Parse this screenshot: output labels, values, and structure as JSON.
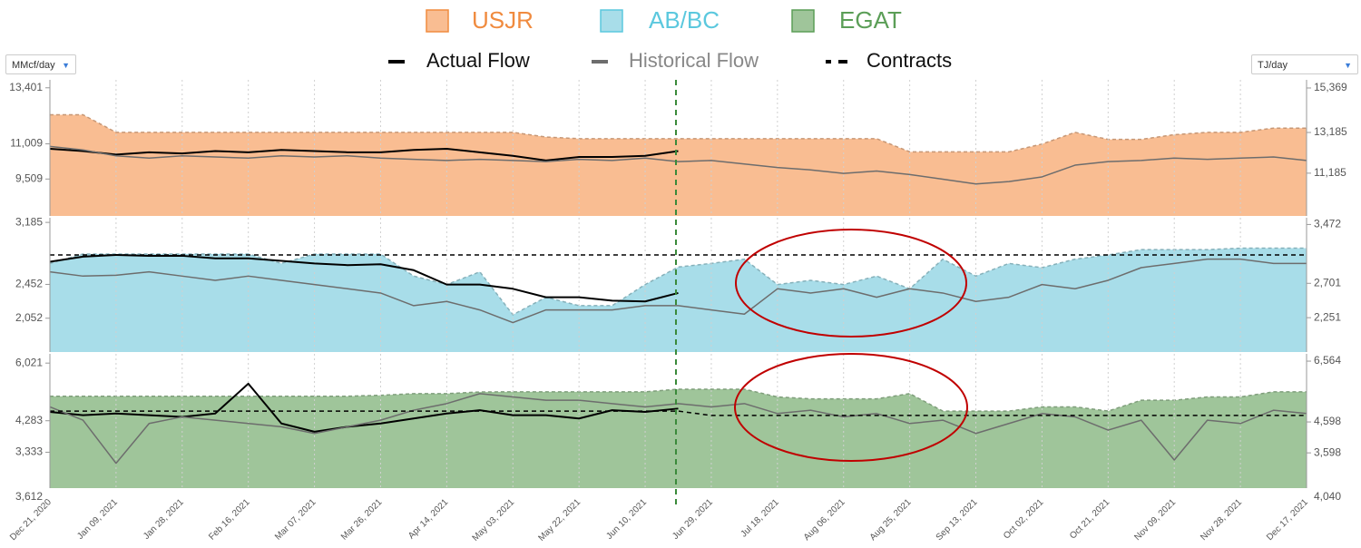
{
  "controls": {
    "left_unit": "MMcf/day",
    "right_unit": "TJ/day"
  },
  "chart_data": [
    {
      "type": "area",
      "ylim": [
        7934,
        13740
      ],
      "y2lim": [
        9085,
        15769
      ],
      "yticks": [
        {
          "value": 13401,
          "label": "13,401"
        },
        {
          "value": 11009,
          "label": "11,009"
        },
        {
          "value": 9509,
          "label": "9,509"
        }
      ],
      "y2ticks": [
        {
          "value": 15369,
          "label": "15,369"
        },
        {
          "value": 13185,
          "label": "13,185"
        },
        {
          "value": 11185,
          "label": "11,185"
        }
      ],
      "series": [
        {
          "name": "USJR",
          "style": "area",
          "color": "#f9bd92",
          "values": [
            12250,
            12250,
            11500,
            11500,
            11500,
            11500,
            11500,
            11500,
            11500,
            11500,
            11500,
            11500,
            11500,
            11500,
            11500,
            11300,
            11230,
            11230,
            11230,
            11230,
            11230,
            11230,
            11230,
            11230,
            11230,
            11230,
            10670,
            10670,
            10670,
            10670,
            11000,
            11500,
            11200,
            11200,
            11400,
            11500,
            11500,
            11680,
            11680
          ]
        },
        {
          "name": "Actual Flow",
          "style": "line",
          "color": "#000000",
          "values": [
            10800,
            10700,
            10550,
            10650,
            10600,
            10700,
            10650,
            10750,
            10700,
            10650,
            10650,
            10750,
            10800,
            10650,
            10500,
            10300,
            10450,
            10450,
            10500,
            10700,
            null,
            null,
            null,
            null,
            null,
            null,
            null,
            null,
            null,
            null,
            null,
            null,
            null,
            null,
            null,
            null,
            null,
            null,
            null
          ]
        },
        {
          "name": "Historical Flow",
          "style": "line",
          "color": "#6d6d6d",
          "values": [
            10900,
            10750,
            10500,
            10400,
            10500,
            10450,
            10400,
            10500,
            10450,
            10500,
            10400,
            10350,
            10300,
            10350,
            10300,
            10250,
            10350,
            10300,
            10400,
            10250,
            10300,
            10150,
            10000,
            9900,
            9750,
            9850,
            9700,
            9500,
            9300,
            9400,
            9600,
            10100,
            10250,
            10300,
            10400,
            10350,
            10400,
            10450,
            10300
          ]
        }
      ]
    },
    {
      "type": "area",
      "ylim": [
        1652,
        3240
      ],
      "y2lim": [
        1801,
        3560
      ],
      "yticks": [
        {
          "value": 3185,
          "label": "3,185"
        },
        {
          "value": 2452,
          "label": "2,452"
        },
        {
          "value": 2052,
          "label": "2,052"
        }
      ],
      "y2ticks": [
        {
          "value": 3472,
          "label": "3,472"
        },
        {
          "value": 2701,
          "label": "2,701"
        },
        {
          "value": 2251,
          "label": "2,251"
        }
      ],
      "series": [
        {
          "name": "AB/BC",
          "style": "area",
          "color": "#a8dde9",
          "values": [
            2700,
            2811,
            2811,
            2811,
            2811,
            2811,
            2811,
            2700,
            2811,
            2811,
            2811,
            2550,
            2450,
            2600,
            2093,
            2300,
            2200,
            2200,
            2450,
            2657,
            2700,
            2750,
            2450,
            2500,
            2450,
            2550,
            2400,
            2750,
            2550,
            2700,
            2650,
            2750,
            2800,
            2863,
            2863,
            2863,
            2880,
            2880,
            2880
          ]
        },
        {
          "name": "Actual Flow",
          "style": "line",
          "color": "#000000",
          "values": [
            2720,
            2780,
            2800,
            2790,
            2790,
            2760,
            2760,
            2730,
            2700,
            2680,
            2690,
            2620,
            2450,
            2450,
            2400,
            2300,
            2300,
            2260,
            2250,
            2350,
            null,
            null,
            null,
            null,
            null,
            null,
            null,
            null,
            null,
            null,
            null,
            null,
            null,
            null,
            null,
            null,
            null,
            null,
            null
          ]
        },
        {
          "name": "Historical Flow",
          "style": "line",
          "color": "#6d6d6d",
          "values": [
            2600,
            2550,
            2560,
            2600,
            2550,
            2500,
            2550,
            2500,
            2450,
            2400,
            2350,
            2200,
            2250,
            2150,
            2000,
            2150,
            2150,
            2150,
            2200,
            2200,
            2150,
            2100,
            2400,
            2350,
            2400,
            2300,
            2400,
            2350,
            2250,
            2300,
            2450,
            2400,
            2500,
            2650,
            2700,
            2750,
            2750,
            2700,
            2700
          ]
        },
        {
          "name": "Contracts",
          "style": "dashed",
          "color": "#000000",
          "values": [
            2800,
            2800,
            2800,
            2800,
            2800,
            2800,
            2800,
            2800,
            2800,
            2800,
            2800,
            2800,
            2800,
            2800,
            2800,
            2800,
            2800,
            2800,
            2800,
            2800,
            2800,
            2800,
            2800,
            2800,
            2800,
            2800,
            2800,
            2800,
            2800,
            2800,
            2800,
            2800,
            2800,
            2800,
            2800,
            2800,
            2800,
            2800,
            2800
          ]
        }
      ]
    },
    {
      "type": "area",
      "ylim": [
        2251,
        6300
      ],
      "y2lim": [
        2458,
        6800
      ],
      "yticks": [
        {
          "value": 6021,
          "label": "6,021"
        },
        {
          "value": 4283,
          "label": "4,283"
        },
        {
          "value": 3333,
          "label": "3,333"
        }
      ],
      "y2ticks": [
        {
          "value": 6564,
          "label": "6,564"
        },
        {
          "value": 4598,
          "label": "4,598"
        },
        {
          "value": 3598,
          "label": "3,598"
        }
      ],
      "axis_floor_labels": [
        "3,612",
        "4,040"
      ],
      "categories": [
        "Dec 21, 2020",
        null,
        "Jan 09, 2021",
        null,
        "Jan 28, 2021",
        null,
        "Feb 16, 2021",
        null,
        "Mar 07, 2021",
        null,
        "Mar 26, 2021",
        null,
        "Apr 14, 2021",
        null,
        "May 03, 2021",
        null,
        "May 22, 2021",
        null,
        "Jun 10, 2021",
        null,
        "Jun 29, 2021",
        null,
        "Jul 18, 2021",
        null,
        "Aug 06, 2021",
        null,
        "Aug 25, 2021",
        null,
        "Sep 13, 2021",
        null,
        "Oct 02, 2021",
        null,
        "Oct 21, 2021",
        null,
        "Nov 09, 2021",
        null,
        "Nov 28, 2021",
        null,
        "Dec 17, 2021"
      ],
      "series": [
        {
          "name": "EGAT",
          "style": "area",
          "color": "#9fc59a",
          "values": [
            5022,
            5022,
            5022,
            5022,
            5022,
            5022,
            5022,
            5022,
            5022,
            5022,
            5050,
            5100,
            5100,
            5150,
            5155,
            5155,
            5155,
            5155,
            5155,
            5234,
            5234,
            5234,
            5000,
            4943,
            4943,
            4943,
            5100,
            4574,
            4574,
            4574,
            4700,
            4700,
            4574,
            4900,
            4900,
            5000,
            5000,
            5155,
            5155
          ]
        },
        {
          "name": "Actual Flow",
          "style": "line",
          "color": "#000000",
          "values": [
            4550,
            4450,
            4500,
            4450,
            4400,
            4500,
            5400,
            4200,
            3950,
            4100,
            4200,
            4350,
            4500,
            4600,
            4450,
            4450,
            4350,
            4600,
            4550,
            4650,
            null,
            null,
            null,
            null,
            null,
            null,
            null,
            null,
            null,
            null,
            null,
            null,
            null,
            null,
            null,
            null,
            null,
            null,
            null
          ]
        },
        {
          "name": "Historical Flow",
          "style": "line",
          "color": "#6d6d6d",
          "values": [
            4700,
            4300,
            3000,
            4200,
            4400,
            4300,
            4200,
            4100,
            3900,
            4100,
            4300,
            4600,
            4800,
            5100,
            5000,
            4900,
            4900,
            4800,
            4700,
            4800,
            4700,
            4800,
            4500,
            4600,
            4400,
            4500,
            4200,
            4300,
            3900,
            4200,
            4500,
            4400,
            4000,
            4300,
            3100,
            4300,
            4200,
            4600,
            4500
          ]
        },
        {
          "name": "Contracts",
          "style": "dashed",
          "color": "#000000",
          "values": [
            4574,
            4574,
            4574,
            4574,
            4574,
            4574,
            4574,
            4574,
            4574,
            4574,
            4574,
            4574,
            4574,
            4574,
            4574,
            4574,
            4574,
            4574,
            4574,
            4574,
            4442,
            4442,
            4442,
            4442,
            4442,
            4442,
            4442,
            4442,
            4442,
            4442,
            4442,
            4442,
            4442,
            4442,
            4442,
            4442,
            4442,
            4442,
            4442
          ]
        }
      ]
    }
  ]
}
